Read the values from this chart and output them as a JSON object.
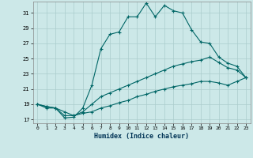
{
  "xlabel": "Humidex (Indice chaleur)",
  "ylabel": "",
  "background_color": "#cce8e8",
  "grid_color": "#aacccc",
  "line_color": "#006666",
  "xlim": [
    -0.5,
    23.5
  ],
  "ylim": [
    16.5,
    32.5
  ],
  "yticks": [
    17,
    19,
    21,
    23,
    25,
    27,
    29,
    31
  ],
  "xticks": [
    0,
    1,
    2,
    3,
    4,
    5,
    6,
    7,
    8,
    9,
    10,
    11,
    12,
    13,
    14,
    15,
    16,
    17,
    18,
    19,
    20,
    21,
    22,
    23
  ],
  "line1_x": [
    0,
    1,
    2,
    3,
    4,
    5,
    6,
    7,
    8,
    9,
    10,
    11,
    12,
    13,
    14,
    15,
    16,
    17,
    18,
    19,
    20,
    21,
    22,
    23
  ],
  "line1_y": [
    19.0,
    18.5,
    18.5,
    17.2,
    17.3,
    18.5,
    21.5,
    26.3,
    28.2,
    28.5,
    30.5,
    30.5,
    32.3,
    30.5,
    32.0,
    31.3,
    31.0,
    28.8,
    27.2,
    27.0,
    25.2,
    24.4,
    24.0,
    22.5
  ],
  "line2_x": [
    0,
    1,
    2,
    3,
    4,
    5,
    6,
    7,
    8,
    9,
    10,
    11,
    12,
    13,
    14,
    15,
    16,
    17,
    18,
    19,
    20,
    21,
    22,
    23
  ],
  "line2_y": [
    19.0,
    18.7,
    18.5,
    18.0,
    17.5,
    18.0,
    19.0,
    20.0,
    20.5,
    21.0,
    21.5,
    22.0,
    22.5,
    23.0,
    23.5,
    24.0,
    24.3,
    24.6,
    24.8,
    25.2,
    24.5,
    23.8,
    23.5,
    22.5
  ],
  "line3_x": [
    0,
    1,
    2,
    3,
    4,
    5,
    6,
    7,
    8,
    9,
    10,
    11,
    12,
    13,
    14,
    15,
    16,
    17,
    18,
    19,
    20,
    21,
    22,
    23
  ],
  "line3_y": [
    19.0,
    18.7,
    18.5,
    17.5,
    17.5,
    17.8,
    18.0,
    18.5,
    18.8,
    19.2,
    19.5,
    20.0,
    20.3,
    20.7,
    21.0,
    21.3,
    21.5,
    21.7,
    22.0,
    22.0,
    21.8,
    21.5,
    22.0,
    22.5
  ]
}
